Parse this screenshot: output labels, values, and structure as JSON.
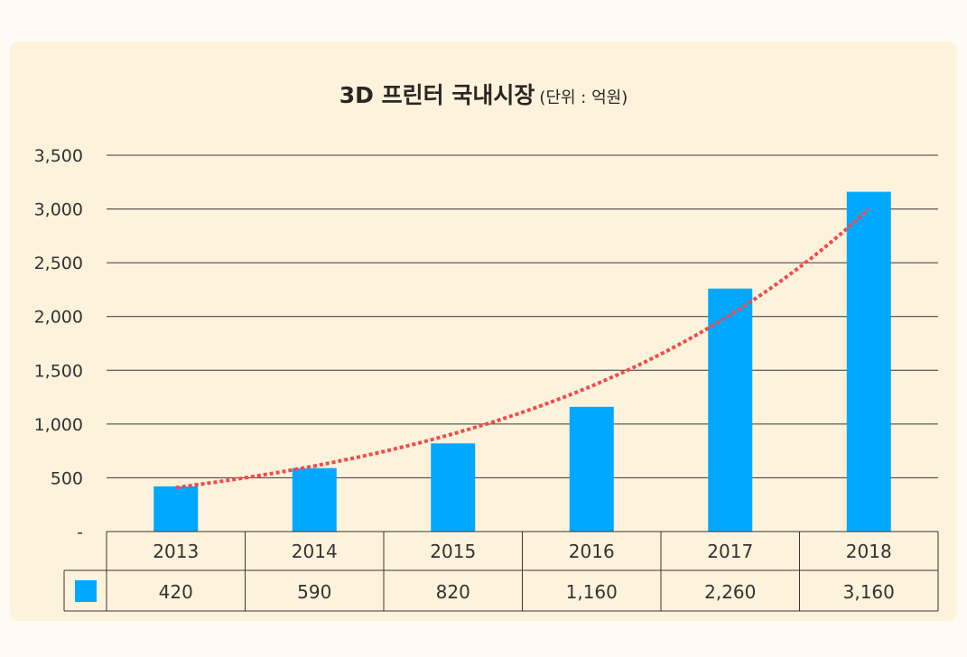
{
  "chart_data": {
    "type": "bar",
    "title": "3D 프린터 국내시장",
    "unit_label": "(단위 : 억원)",
    "categories": [
      "2013",
      "2014",
      "2015",
      "2016",
      "2017",
      "2018"
    ],
    "values": [
      420,
      590,
      820,
      1160,
      2260,
      3160
    ],
    "value_labels": [
      "420",
      "590",
      "820",
      "1,160",
      "2,260",
      "3,160"
    ],
    "ylim": [
      0,
      3500
    ],
    "yticks": [
      0,
      500,
      1000,
      1500,
      2000,
      2500,
      3000,
      3500
    ],
    "ytick_labels": [
      "-",
      "500",
      "1,000",
      "1,500",
      "2,000",
      "2,500",
      "3,000",
      "3,500"
    ],
    "grid": true,
    "trendline": {
      "type": "exponential",
      "start": 410,
      "end": 3000
    },
    "legend": "data-table",
    "colors": {
      "bar": "#00a8ff",
      "trend": "#f44a4a",
      "background": "#fdf3dc"
    }
  }
}
